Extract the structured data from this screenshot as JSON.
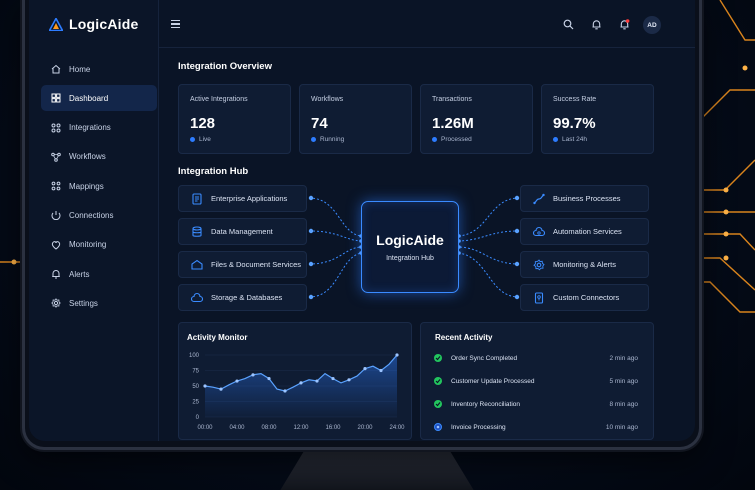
{
  "brand": {
    "name": "LogicAide"
  },
  "colors": {
    "accent": "#2d7cff",
    "success": "#22c55e",
    "glow_orange": "#ff9a1f"
  },
  "sidebar": {
    "items": [
      {
        "label": "Home",
        "icon": "home-icon"
      },
      {
        "label": "Dashboard",
        "icon": "dashboard-icon",
        "active": true
      },
      {
        "label": "Integrations",
        "icon": "integrations-icon"
      },
      {
        "label": "Workflows",
        "icon": "workflows-icon"
      },
      {
        "label": "Mappings",
        "icon": "mappings-icon"
      },
      {
        "label": "Connections",
        "icon": "connections-icon"
      },
      {
        "label": "Monitoring",
        "icon": "monitoring-icon"
      },
      {
        "label": "Alerts",
        "icon": "alerts-icon"
      },
      {
        "label": "Settings",
        "icon": "settings-icon"
      }
    ]
  },
  "topbar": {
    "avatar_initials": "AD",
    "icons": [
      "menu-icon",
      "search-icon",
      "bell-icon",
      "notification-bell-icon"
    ]
  },
  "overview": {
    "title": "Integration Overview",
    "stats": [
      {
        "label": "Active Integrations",
        "value": "128",
        "sub": "Live"
      },
      {
        "label": "Workflows",
        "value": "74",
        "sub": "Running"
      },
      {
        "label": "Transactions",
        "value": "1.26M",
        "sub": "Processed"
      },
      {
        "label": "Success Rate",
        "value": "99.7%",
        "sub": "Last 24h"
      }
    ]
  },
  "hub": {
    "title": "Integration Hub",
    "center_title": "LogicAide",
    "center_subtitle": "Integration Hub",
    "left": [
      {
        "label": "Enterprise Applications",
        "icon": "document-icon"
      },
      {
        "label": "Data Management",
        "icon": "database-icon"
      },
      {
        "label": "Files & Document Services",
        "icon": "cloud-icon"
      },
      {
        "label": "Storage & Databases",
        "icon": "cloud-storage-icon"
      }
    ],
    "right": [
      {
        "label": "Business Processes",
        "icon": "process-icon"
      },
      {
        "label": "Automation Services",
        "icon": "automation-icon"
      },
      {
        "label": "Monitoring & Alerts",
        "icon": "gear-icon"
      },
      {
        "label": "Custom Connectors",
        "icon": "connector-icon"
      }
    ]
  },
  "activity_monitor": {
    "title": "Activity Monitor",
    "chart_data": {
      "type": "area",
      "x": [
        "00:00",
        "01:00",
        "02:00",
        "03:00",
        "04:00",
        "05:00",
        "06:00",
        "07:00",
        "08:00",
        "09:00",
        "10:00",
        "11:00",
        "12:00",
        "13:00",
        "14:00",
        "15:00",
        "16:00",
        "17:00",
        "18:00",
        "19:00",
        "20:00",
        "21:00",
        "22:00",
        "23:00",
        "24:00"
      ],
      "values": [
        50,
        48,
        45,
        52,
        58,
        62,
        68,
        70,
        62,
        45,
        42,
        48,
        55,
        60,
        58,
        70,
        62,
        55,
        60,
        66,
        78,
        82,
        75,
        85,
        100
      ],
      "xticks": [
        "00:00",
        "04:00",
        "08:00",
        "12:00",
        "16:00",
        "20:00",
        "24:00"
      ],
      "yticks": [
        0,
        25,
        50,
        75,
        100
      ],
      "ylim": [
        0,
        100
      ],
      "grid": true
    }
  },
  "recent_activity": {
    "title": "Recent Activity",
    "items": [
      {
        "text": "Order Sync Completed",
        "time": "2 min ago",
        "status": "success"
      },
      {
        "text": "Customer Update Processed",
        "time": "5 min ago",
        "status": "success"
      },
      {
        "text": "Inventory Reconciliation",
        "time": "8 min ago",
        "status": "success"
      },
      {
        "text": "Invoice Processing",
        "time": "10 min ago",
        "status": "processing"
      }
    ]
  }
}
